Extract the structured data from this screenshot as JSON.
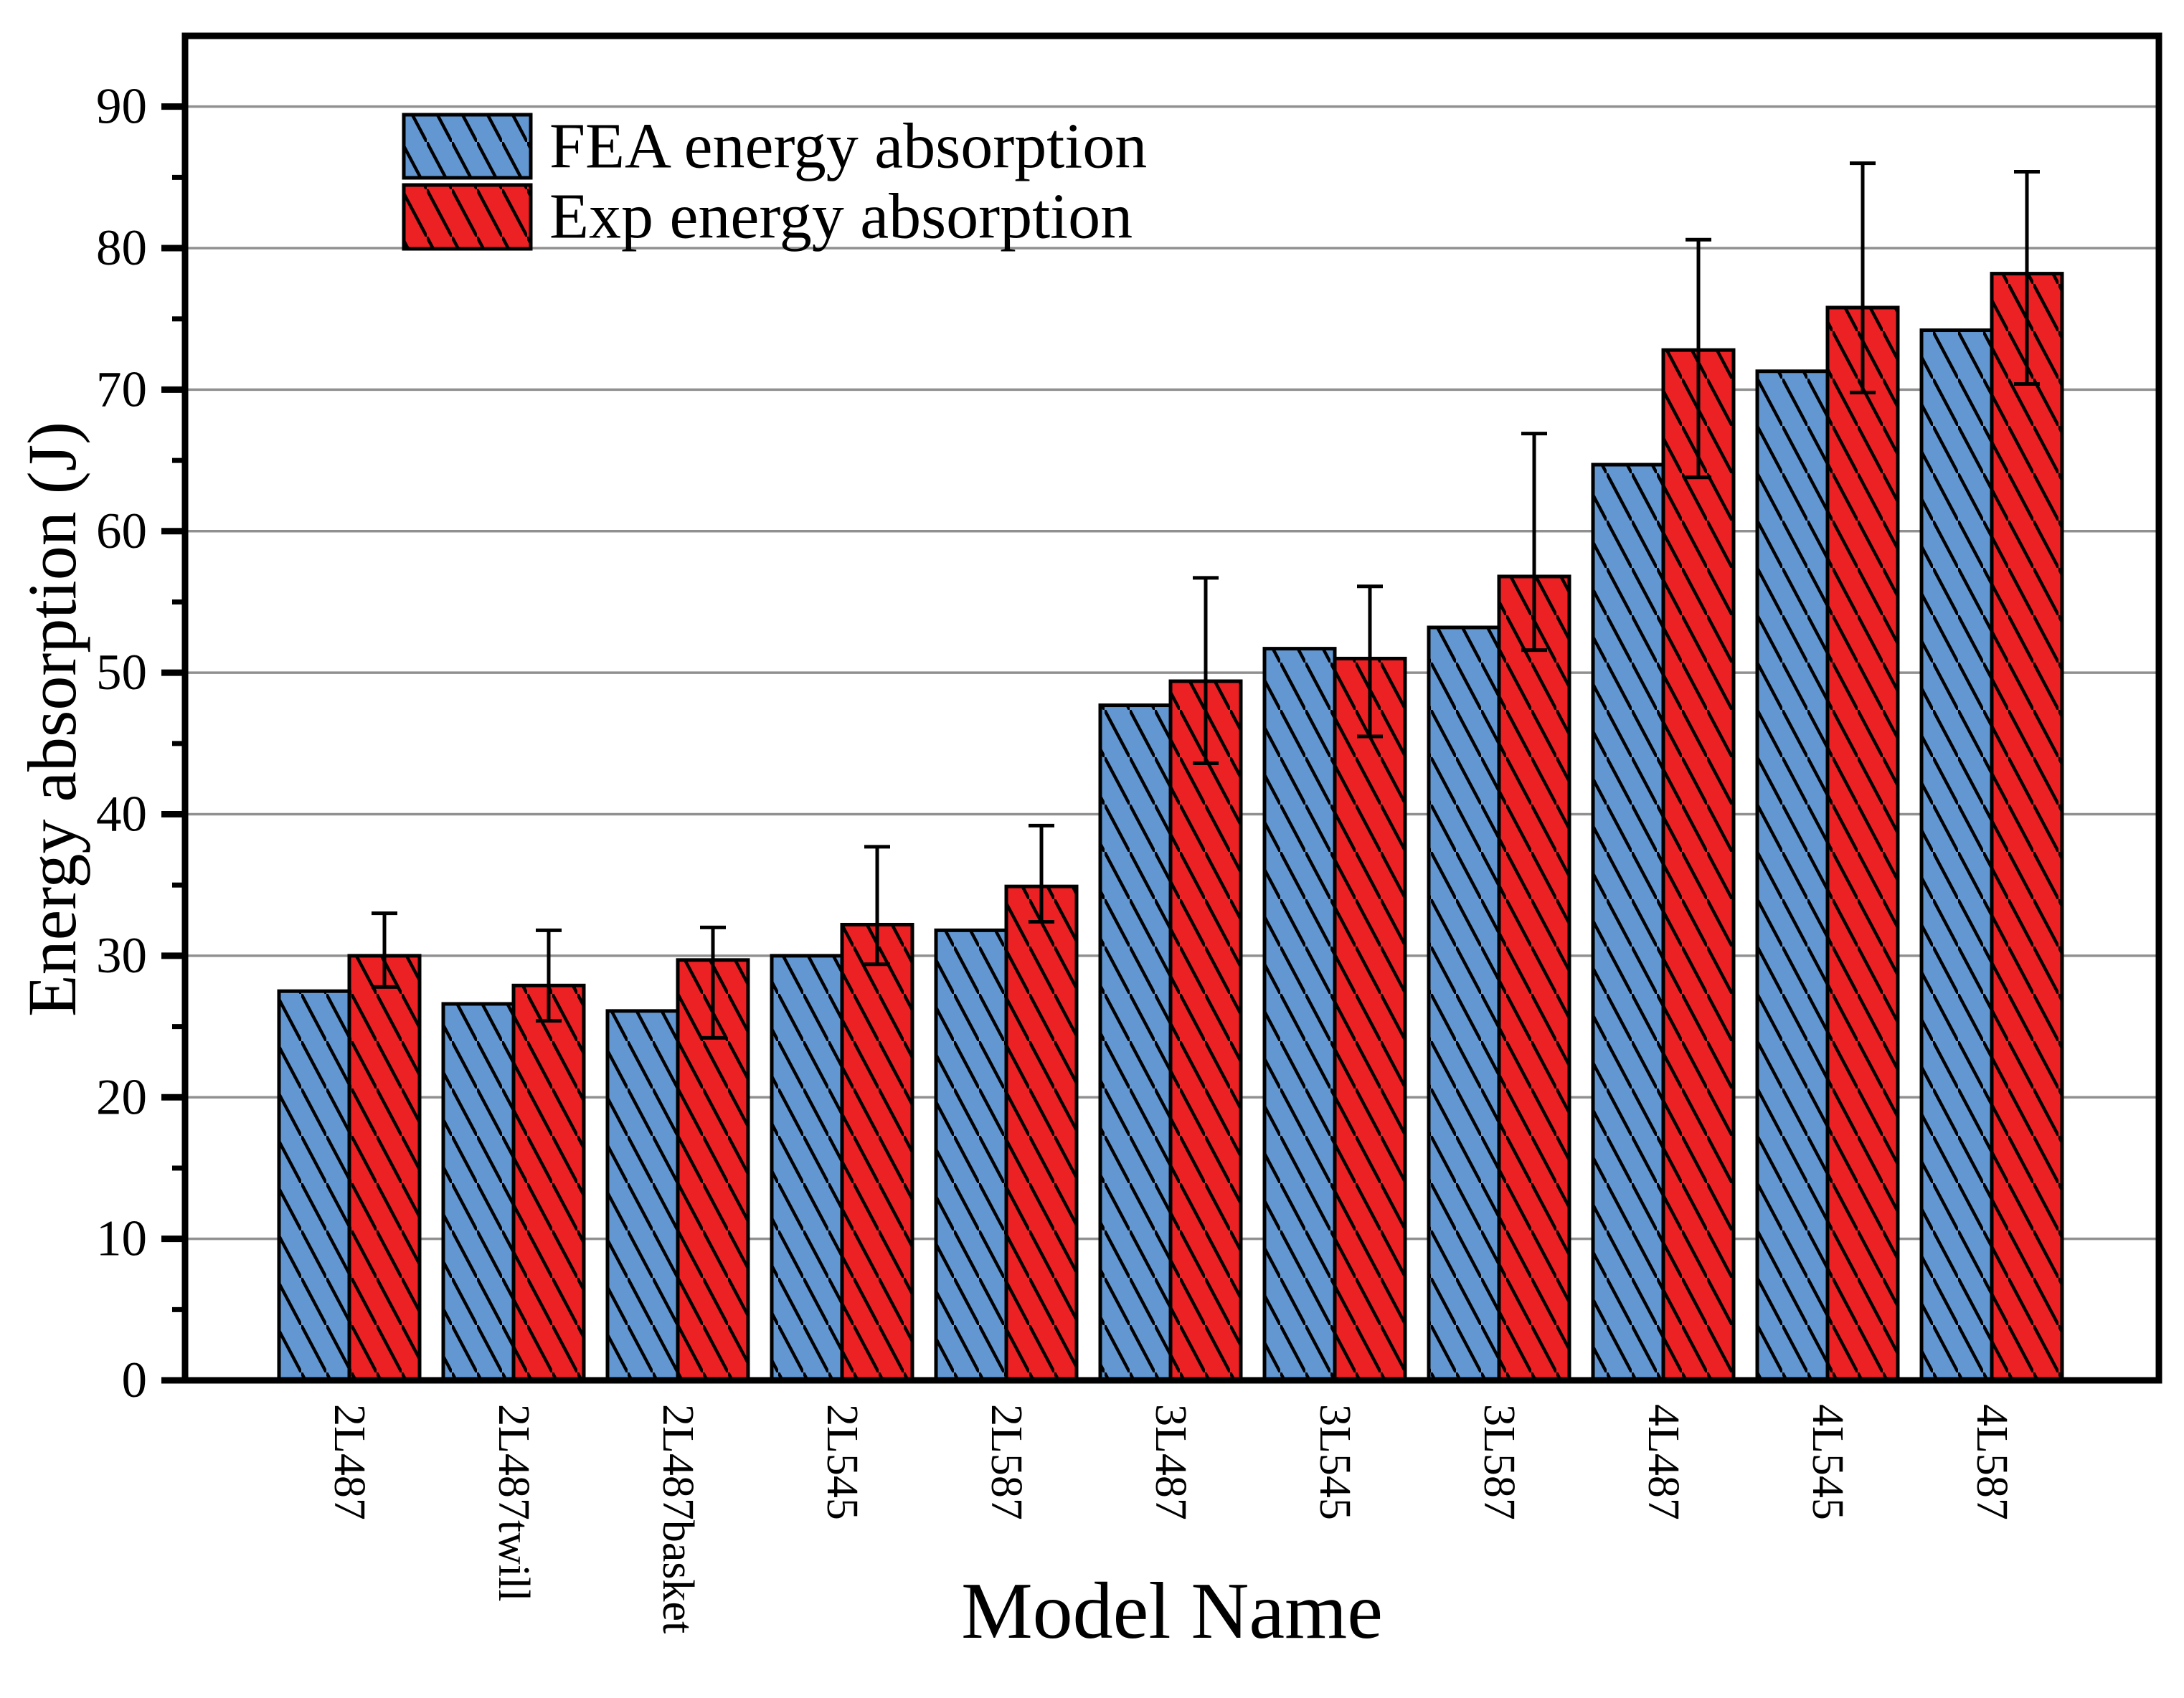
{
  "chart_data": {
    "type": "bar",
    "title": "",
    "xlabel": "Model Name",
    "ylabel": "Energy absorption (J)",
    "ylim": [
      0,
      95
    ],
    "yticks": [
      0,
      10,
      20,
      30,
      40,
      50,
      60,
      70,
      80,
      90
    ],
    "y_minor_step": 5,
    "grid": "horizontal-major-gray",
    "legend_position": "top-left-inside",
    "categories": [
      "2L487",
      "2L487twill",
      "2L487basket",
      "2L545",
      "2L587",
      "3L487",
      "3L545",
      "3L587",
      "4L487",
      "4L545",
      "4L587"
    ],
    "series": [
      {
        "name": "FEA energy absorption",
        "color": "#6297D2",
        "hatch": "\\",
        "values": [
          27.5,
          26.6,
          26.1,
          30.0,
          31.8,
          47.7,
          51.7,
          53.2,
          64.7,
          71.3,
          74.2
        ]
      },
      {
        "name": "Exp energy absorption",
        "color": "#EC2123",
        "hatch": "\\",
        "values": [
          30.0,
          27.9,
          29.7,
          32.2,
          34.9,
          49.4,
          51.0,
          56.8,
          72.8,
          75.8,
          78.2
        ],
        "error_up": [
          3.0,
          3.9,
          2.3,
          5.5,
          4.3,
          7.3,
          5.1,
          10.1,
          7.8,
          10.2,
          7.2
        ],
        "error_down": [
          2.2,
          2.5,
          5.5,
          2.8,
          2.5,
          5.8,
          5.5,
          5.2,
          9.0,
          6.0,
          7.8
        ]
      }
    ],
    "colors": {
      "grid": "#909090",
      "frame": "#000000",
      "hatch_lines": "#000000",
      "error_bars": "#000000"
    }
  }
}
